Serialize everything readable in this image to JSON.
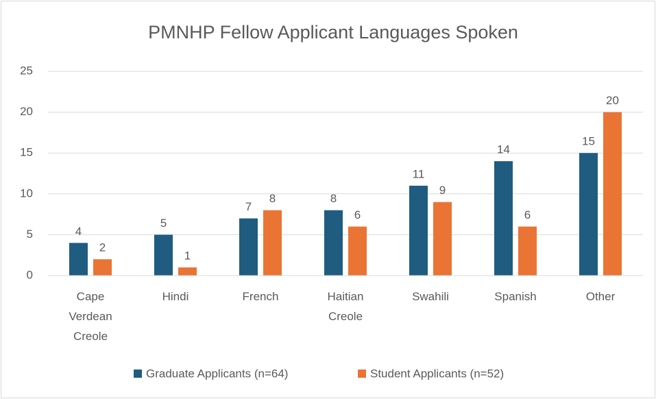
{
  "chart_data": {
    "type": "bar",
    "title": "PMNHP Fellow Applicant Languages Spoken",
    "categories": [
      "Cape Verdean Creole",
      "Hindi",
      "French",
      "Haitian Creole",
      "Swahili",
      "Spanish",
      "Other"
    ],
    "series": [
      {
        "name": "Graduate Applicants (n=64)",
        "color": "#1f5c80",
        "values": [
          4,
          5,
          7,
          8,
          11,
          14,
          15
        ]
      },
      {
        "name": "Student Applicants (n=52)",
        "color": "#ea7434",
        "values": [
          2,
          1,
          8,
          6,
          9,
          6,
          20
        ]
      }
    ],
    "ylim": [
      0,
      25
    ],
    "yticks": [
      0,
      5,
      10,
      15,
      20,
      25
    ],
    "grid": true,
    "legend": "bottom"
  }
}
